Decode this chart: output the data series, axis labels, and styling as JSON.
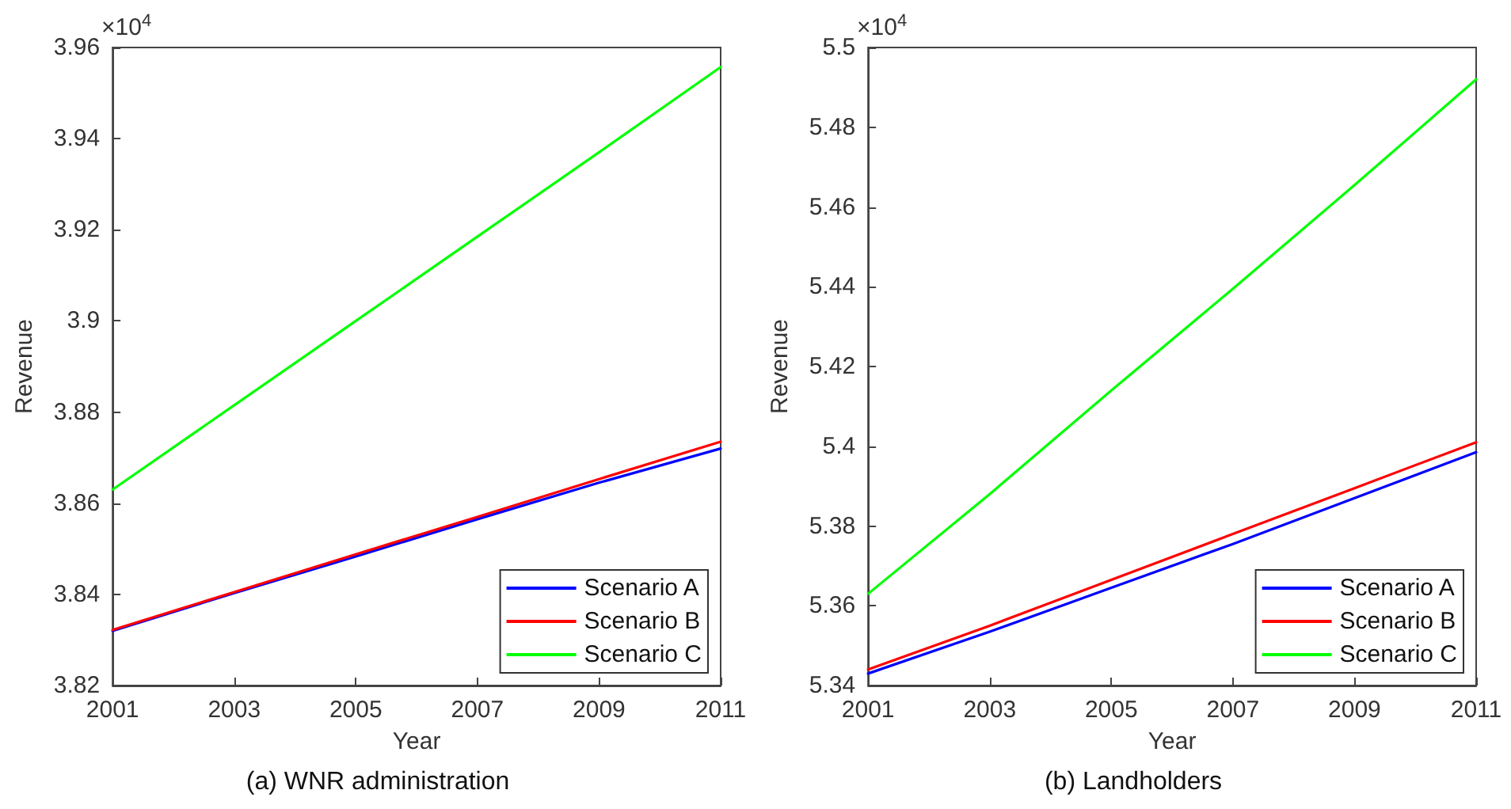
{
  "chart_data": [
    {
      "type": "line",
      "title": "(a) WNR administration",
      "xlabel": "Year",
      "ylabel": "Revenue",
      "annotations": [
        "×10$^{4}$"
      ],
      "x": [
        2001,
        2003,
        2005,
        2007,
        2009,
        2011
      ],
      "series": [
        {
          "name": "Scenario A",
          "color": "#0000ff",
          "values": [
            3.832,
            3.8403,
            3.8483,
            3.8565,
            3.8645,
            3.872
          ]
        },
        {
          "name": "Scenario B",
          "color": "#ff0000",
          "values": [
            3.8322,
            3.8405,
            3.8488,
            3.857,
            3.8653,
            3.8735
          ]
        },
        {
          "name": "Scenario C",
          "color": "#00ff00",
          "values": [
            3.863,
            3.8815,
            3.9,
            3.9185,
            3.937,
            3.9557
          ]
        }
      ],
      "xlim": [
        2001,
        2011
      ],
      "xticks": [
        2001,
        2003,
        2005,
        2007,
        2009,
        2011
      ],
      "ylim": [
        3.82,
        3.96
      ],
      "yticks": [
        3.82,
        3.84,
        3.86,
        3.88,
        3.9,
        3.92,
        3.94,
        3.96
      ],
      "legend": "bottom right",
      "grid": false,
      "marker": "none",
      "line_style": "solid"
    },
    {
      "type": "line",
      "title": "(b) Landholders",
      "xlabel": "Year",
      "ylabel": "Revenue",
      "annotations": [
        "×10$^{4}$"
      ],
      "x": [
        2001,
        2003,
        2005,
        2007,
        2009,
        2011
      ],
      "series": [
        {
          "name": "Scenario A",
          "color": "#0000ff",
          "values": [
            5.343,
            5.3535,
            5.3645,
            5.3755,
            5.387,
            5.3985
          ]
        },
        {
          "name": "Scenario B",
          "color": "#ff0000",
          "values": [
            5.344,
            5.355,
            5.3665,
            5.378,
            5.3895,
            5.401
          ]
        },
        {
          "name": "Scenario C",
          "color": "#00ff00",
          "values": [
            5.363,
            5.388,
            5.414,
            5.4395,
            5.4655,
            5.492
          ]
        }
      ],
      "xlim": [
        2001,
        2011
      ],
      "xticks": [
        2001,
        2003,
        2005,
        2007,
        2009,
        2011
      ],
      "ylim": [
        5.34,
        5.5
      ],
      "yticks": [
        5.34,
        5.36,
        5.38,
        5.4,
        5.42,
        5.44,
        5.46,
        5.48,
        5.5
      ],
      "legend": "bottom right",
      "grid": false,
      "marker": "none",
      "line_style": "solid"
    }
  ]
}
